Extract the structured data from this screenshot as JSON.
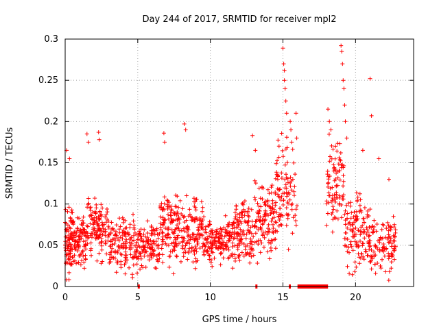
{
  "chart_data": {
    "type": "scatter",
    "title": "Day 244 of 2017, SRMTID for receiver mpl2",
    "xlabel": "GPS time / hours",
    "ylabel": "SRMTID / TECUs",
    "xlim": [
      0,
      24
    ],
    "ylim": [
      0,
      0.3
    ],
    "xticks": [
      0,
      5,
      10,
      15,
      20
    ],
    "xtick_labels": [
      "0",
      "5",
      "10",
      "15",
      "20"
    ],
    "yticks": [
      0,
      0.05,
      0.1,
      0.15,
      0.2,
      0.25,
      0.3
    ],
    "ytick_labels": [
      "0",
      "0.05",
      "0.1",
      "0.15",
      "0.2",
      "0.25",
      "0.3"
    ],
    "grid": true,
    "marker": "+",
    "color": "#ff0000",
    "series": [
      {
        "name": "SRMTID",
        "envelope": [
          {
            "x": [
              0.0,
              0.5
            ],
            "y_min": 0.0,
            "y_max": 0.11,
            "n": 80
          },
          {
            "x": [
              0.5,
              1.5
            ],
            "y_min": 0.01,
            "y_max": 0.1,
            "n": 100
          },
          {
            "x": [
              1.5,
              3.0
            ],
            "y_min": 0.02,
            "y_max": 0.12,
            "n": 120
          },
          {
            "x": [
              3.0,
              5.0
            ],
            "y_min": 0.0,
            "y_max": 0.1,
            "n": 150
          },
          {
            "x": [
              5.0,
              6.5
            ],
            "y_min": 0.01,
            "y_max": 0.09,
            "n": 110
          },
          {
            "x": [
              6.5,
              8.0
            ],
            "y_min": 0.01,
            "y_max": 0.13,
            "n": 130
          },
          {
            "x": [
              8.0,
              9.5
            ],
            "y_min": 0.01,
            "y_max": 0.12,
            "n": 120
          },
          {
            "x": [
              9.5,
              11.5
            ],
            "y_min": 0.02,
            "y_max": 0.09,
            "n": 160
          },
          {
            "x": [
              11.5,
              13.0
            ],
            "y_min": 0.01,
            "y_max": 0.12,
            "n": 130
          },
          {
            "x": [
              13.0,
              14.5
            ],
            "y_min": 0.02,
            "y_max": 0.14,
            "n": 120
          },
          {
            "x": [
              14.5,
              16.0
            ],
            "y_min": 0.03,
            "y_max": 0.2,
            "n": 100
          },
          {
            "x": [
              18.0,
              19.2
            ],
            "y_min": 0.05,
            "y_max": 0.2,
            "n": 90
          },
          {
            "x": [
              19.2,
              21.0
            ],
            "y_min": 0.0,
            "y_max": 0.13,
            "n": 130
          },
          {
            "x": [
              21.0,
              22.8
            ],
            "y_min": 0.0,
            "y_max": 0.1,
            "n": 110
          }
        ],
        "outliers": [
          {
            "x": 0.1,
            "y": 0.165
          },
          {
            "x": 0.3,
            "y": 0.155
          },
          {
            "x": 1.5,
            "y": 0.185
          },
          {
            "x": 1.6,
            "y": 0.175
          },
          {
            "x": 2.3,
            "y": 0.187
          },
          {
            "x": 2.35,
            "y": 0.178
          },
          {
            "x": 6.8,
            "y": 0.186
          },
          {
            "x": 6.85,
            "y": 0.175
          },
          {
            "x": 8.2,
            "y": 0.197
          },
          {
            "x": 8.3,
            "y": 0.19
          },
          {
            "x": 12.9,
            "y": 0.183
          },
          {
            "x": 13.1,
            "y": 0.165
          },
          {
            "x": 15.0,
            "y": 0.289
          },
          {
            "x": 15.05,
            "y": 0.27
          },
          {
            "x": 15.1,
            "y": 0.262
          },
          {
            "x": 15.1,
            "y": 0.25
          },
          {
            "x": 15.15,
            "y": 0.24
          },
          {
            "x": 15.2,
            "y": 0.225
          },
          {
            "x": 15.25,
            "y": 0.21
          },
          {
            "x": 15.5,
            "y": 0.2
          },
          {
            "x": 15.55,
            "y": 0.19
          },
          {
            "x": 15.6,
            "y": 0.175
          },
          {
            "x": 15.9,
            "y": 0.21
          },
          {
            "x": 15.95,
            "y": 0.18
          },
          {
            "x": 18.1,
            "y": 0.215
          },
          {
            "x": 18.2,
            "y": 0.2
          },
          {
            "x": 18.3,
            "y": 0.19
          },
          {
            "x": 19.0,
            "y": 0.292
          },
          {
            "x": 19.05,
            "y": 0.285
          },
          {
            "x": 19.1,
            "y": 0.27
          },
          {
            "x": 19.15,
            "y": 0.25
          },
          {
            "x": 19.2,
            "y": 0.24
          },
          {
            "x": 19.25,
            "y": 0.22
          },
          {
            "x": 19.3,
            "y": 0.2
          },
          {
            "x": 19.4,
            "y": 0.18
          },
          {
            "x": 20.5,
            "y": 0.165
          },
          {
            "x": 21.0,
            "y": 0.252
          },
          {
            "x": 21.1,
            "y": 0.207
          },
          {
            "x": 21.6,
            "y": 0.155
          },
          {
            "x": 22.3,
            "y": 0.13
          }
        ],
        "zero_segments": [
          {
            "x0": 5.0,
            "x1": 5.1
          },
          {
            "x0": 13.1,
            "x1": 13.2
          },
          {
            "x0": 15.4,
            "x1": 15.5
          },
          {
            "x0": 16.0,
            "x1": 18.1
          }
        ]
      }
    ]
  }
}
